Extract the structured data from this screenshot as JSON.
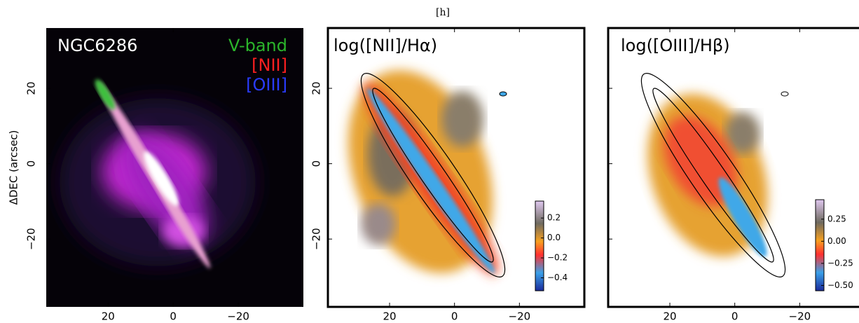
{
  "caption": "[h]",
  "chart_data": [
    {
      "type": "image",
      "title": "NGC6286",
      "annotations": [
        {
          "text": "V-band",
          "color": "#2bb52b"
        },
        {
          "text": "[NII]",
          "color": "#ff2020"
        },
        {
          "text": "[OIII]",
          "color": "#2a3cff"
        }
      ],
      "y_label": "ΔDEC (arcsec)",
      "xlim": [
        39,
        -40
      ],
      "ylim": [
        -38,
        36
      ],
      "xticks": [
        20,
        0,
        {
          "value": -20,
          "label": "−20"
        }
      ],
      "yticks": [
        {
          "value": -20,
          "label": "−20"
        },
        0,
        20
      ]
    },
    {
      "type": "heatmap",
      "title": "log([NII]/Hα)",
      "xlim": [
        39,
        -40
      ],
      "ylim": [
        -38,
        36
      ],
      "xticks": [
        20,
        0,
        {
          "value": -20,
          "label": "−20"
        }
      ],
      "yticks": [
        {
          "value": -20,
          "label": "−20"
        },
        0,
        20
      ],
      "clim": [
        -0.53,
        0.37
      ],
      "cticks": [
        {
          "value": -0.4,
          "label": "−0.4"
        },
        {
          "value": -0.2,
          "label": "−0.2"
        },
        {
          "value": 0,
          "label": "0.0"
        },
        0.2
      ]
    },
    {
      "type": "heatmap",
      "title": "log([OIII]/Hβ)",
      "xlim": [
        39,
        -40
      ],
      "ylim": [
        -38,
        36
      ],
      "xticks": [
        20,
        0,
        {
          "value": -20,
          "label": "−20"
        }
      ],
      "yticks": [
        -20,
        0,
        20
      ],
      "clim": [
        -0.56,
        0.47
      ],
      "cticks": [
        {
          "value": -0.5,
          "label": "−0.50"
        },
        {
          "value": -0.25,
          "label": "−0.25"
        },
        {
          "value": 0,
          "label": "0.00"
        },
        0.25
      ]
    }
  ]
}
